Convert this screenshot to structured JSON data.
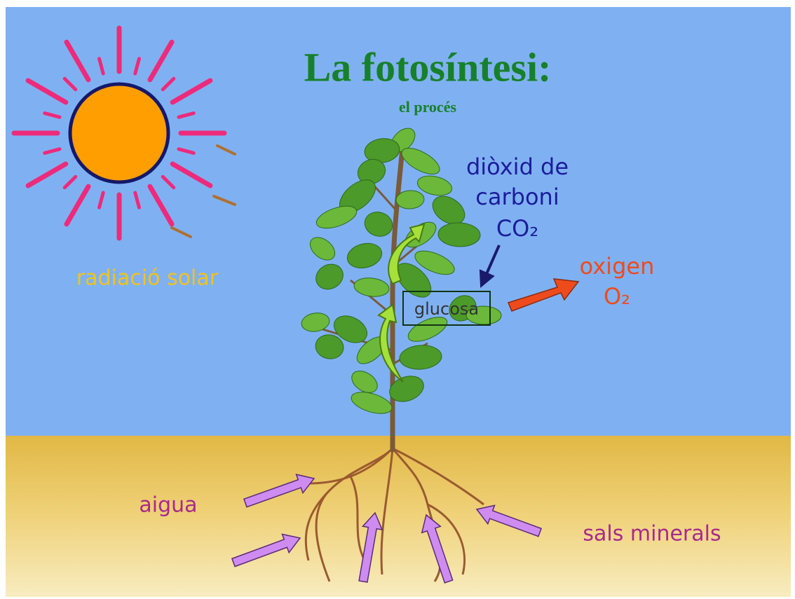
{
  "title": "La fotosíntesi:",
  "subtitle": "el procés",
  "labels": {
    "sun": "radiació solar",
    "co2": [
      "diòxid de",
      "carboni",
      "CO₂"
    ],
    "oxygen": [
      "oxigen",
      "O₂"
    ],
    "glucose": "glucosa",
    "water": "aigua",
    "minerals": "sals minerals"
  }
}
